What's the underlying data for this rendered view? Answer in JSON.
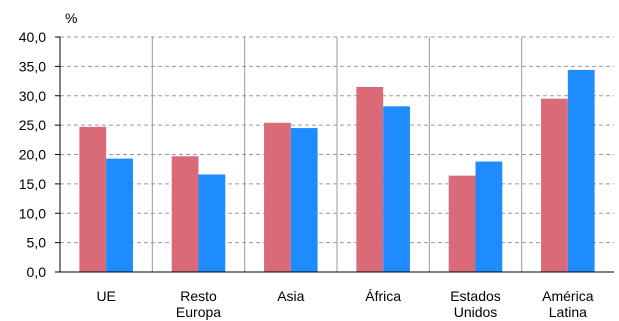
{
  "chart_data": {
    "type": "bar",
    "unit_label": "%",
    "categories": [
      [
        "UE"
      ],
      [
        "Resto",
        "Europa"
      ],
      [
        "Asia"
      ],
      [
        "África"
      ],
      [
        "Estados",
        "Unidos"
      ],
      [
        "América",
        "Latina"
      ]
    ],
    "series": [
      {
        "color": "#d96b78",
        "values": [
          24.7,
          19.7,
          25.4,
          31.5,
          16.4,
          29.5
        ]
      },
      {
        "color": "#1e8cff",
        "values": [
          19.3,
          16.6,
          24.5,
          28.2,
          18.8,
          34.4
        ]
      }
    ],
    "y_ticks": [
      "0,0",
      "5,0",
      "10,0",
      "15,0",
      "20,0",
      "25,0",
      "30,0",
      "35,0",
      "40,0"
    ],
    "ylim": [
      0,
      40
    ],
    "grid": true,
    "legend": "none"
  }
}
